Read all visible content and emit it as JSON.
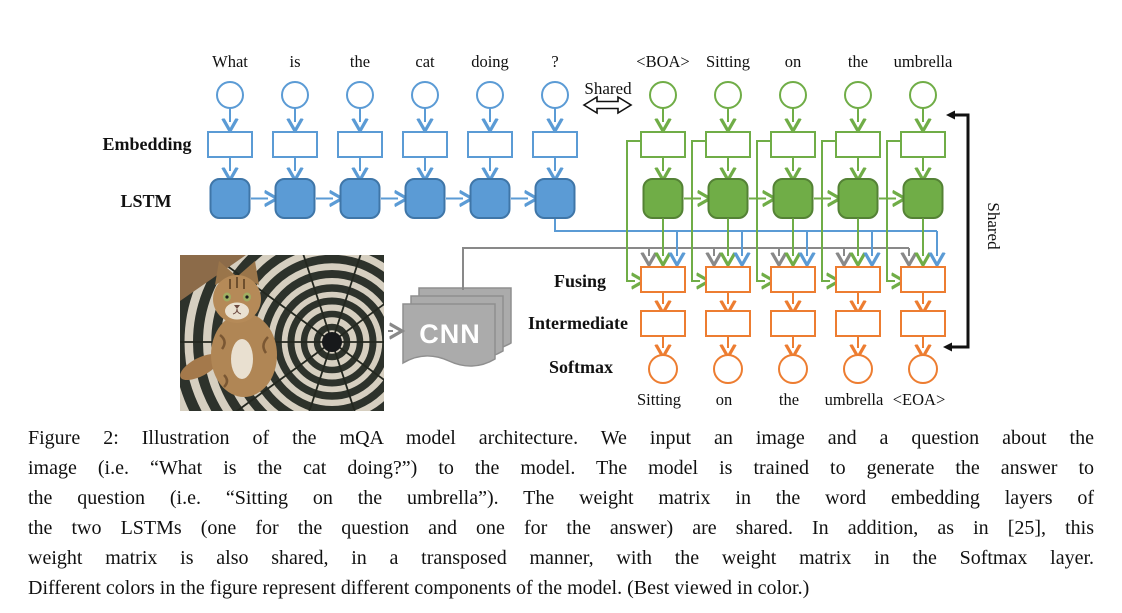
{
  "figure": {
    "question_words": [
      "What",
      "is",
      "the",
      "cat",
      "doing",
      "?"
    ],
    "answer_input_words": [
      "<BOA>",
      "Sitting",
      "on",
      "the",
      "umbrella"
    ],
    "answer_output_words": [
      "Sitting",
      "on",
      "the",
      "umbrella",
      "<EOA>"
    ],
    "layer_labels": {
      "embedding": "Embedding",
      "lstm": "LSTM",
      "fusing": "Fusing",
      "intermediate": "Intermediate",
      "softmax": "Softmax"
    },
    "shared_top_label": "Shared",
    "shared_right_label": "Shared",
    "cnn_label": "CNN"
  },
  "colors": {
    "question_blue": "#5B9BD5",
    "question_blue_dark": "#3F76A8",
    "answer_green": "#70AD47",
    "answer_green_dark": "#548235",
    "output_orange": "#ED7D31",
    "connector_gray": "#898989",
    "cnn_gray_fill": "#ABABAB",
    "cnn_gray_border": "#8F8F8F",
    "black": "#111111"
  },
  "caption": {
    "lines": [
      "Figure 2: Illustration of the mQA model architecture. We input an image and a question about the",
      "image (i.e. “What is the cat doing?”) to the model. The model is trained to generate the answer to",
      "the question (i.e. “Sitting on the umbrella”). The weight matrix in the word embedding layers of",
      "the two LSTMs (one for the question and one for the answer) are shared. In addition, as in [25], this",
      "weight matrix is also shared, in a transposed manner, with the weight matrix in the Softmax layer.",
      "Different colors in the figure represent different components of the model. (Best viewed in color.)"
    ]
  }
}
